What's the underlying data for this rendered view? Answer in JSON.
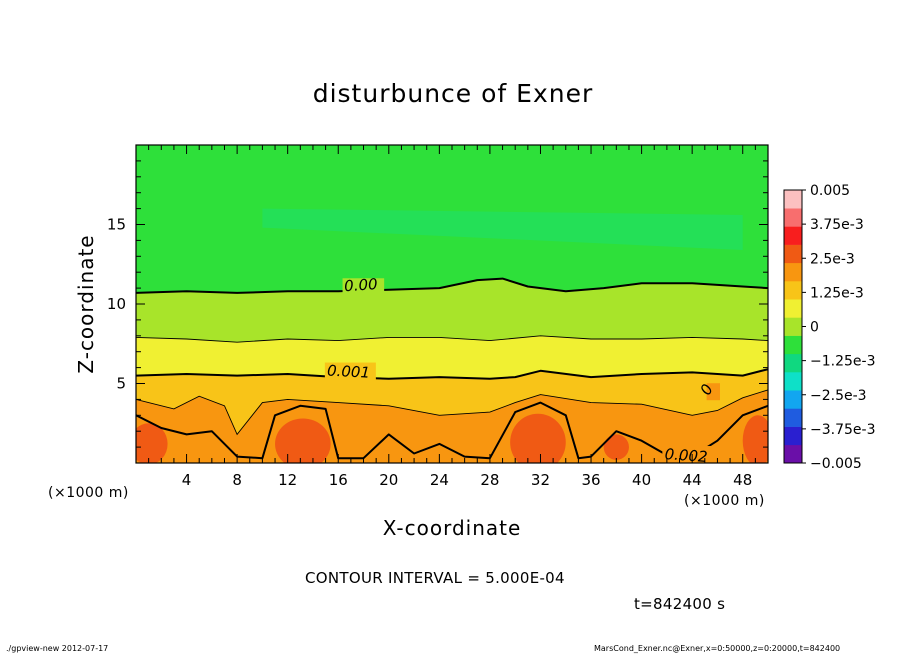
{
  "chart_data": {
    "type": "heatmap",
    "title": "disturbunce of Exner",
    "xlabel": "X-coordinate",
    "ylabel": "Z-coordinate",
    "x_unit": "(×1000 m)",
    "xlim": [
      0,
      50
    ],
    "ylim": [
      0,
      20
    ],
    "xticks": [
      "4",
      "8",
      "12",
      "16",
      "20",
      "24",
      "28",
      "32",
      "36",
      "40",
      "44",
      "48"
    ],
    "yticks": [
      "5",
      "10",
      "15"
    ],
    "colorbar": {
      "tick_labels": [
        "0.005",
        "3.75e-3",
        "2.5e-3",
        "1.25e-3",
        "0",
        "−1.25e-3",
        "−2.5e-3",
        "−3.75e-3",
        "−0.005"
      ],
      "range": [
        -0.005,
        0.005
      ]
    },
    "contour_labels": [
      "0.00",
      "0.001",
      "0.002",
      "0"
    ],
    "contour_interval": "CONTOUR INTERVAL = 5.000E-04",
    "time_label": "t=842400 s",
    "contour_lines_approx": [
      {
        "level": 0.0,
        "x": [
          0,
          4,
          8,
          12,
          16,
          20,
          24,
          27,
          29,
          31,
          34,
          37,
          40,
          44,
          48,
          50
        ],
        "z": [
          10.7,
          10.8,
          10.7,
          10.8,
          10.8,
          10.9,
          11.0,
          11.5,
          11.6,
          11.1,
          10.8,
          11.0,
          11.3,
          11.3,
          11.1,
          11.0
        ]
      },
      {
        "level": 0.0005,
        "x": [
          0,
          4,
          8,
          12,
          16,
          20,
          24,
          28,
          32,
          36,
          40,
          44,
          48,
          50
        ],
        "z": [
          7.9,
          7.8,
          7.6,
          7.8,
          7.7,
          7.9,
          7.9,
          7.7,
          8.0,
          7.8,
          7.8,
          7.9,
          7.8,
          7.7
        ]
      },
      {
        "level": 0.001,
        "x": [
          0,
          4,
          8,
          12,
          16,
          20,
          24,
          28,
          30,
          32,
          36,
          40,
          44,
          48,
          50
        ],
        "z": [
          5.5,
          5.6,
          5.5,
          5.6,
          5.4,
          5.3,
          5.4,
          5.3,
          5.4,
          5.8,
          5.4,
          5.6,
          5.7,
          5.5,
          5.9
        ]
      },
      {
        "level": 0.002,
        "x": [
          0,
          2,
          4,
          6,
          8,
          10,
          11,
          13,
          15,
          16,
          18,
          20,
          22,
          24,
          26,
          28,
          30,
          32,
          34,
          35,
          36,
          38,
          40,
          42,
          44,
          46,
          48,
          50
        ],
        "z": [
          3.0,
          2.2,
          1.8,
          2.0,
          0.4,
          0.3,
          3.0,
          3.6,
          3.4,
          0.3,
          0.3,
          1.8,
          0.6,
          1.2,
          0.4,
          0.3,
          3.2,
          3.8,
          3.0,
          0.3,
          0.4,
          2.0,
          1.4,
          0.5,
          0.4,
          1.4,
          3.0,
          3.6
        ]
      }
    ],
    "field_description_levels": {
      "bands": [
        {
          "z": 20.0,
          "value": -0.0003
        },
        {
          "z": 15.0,
          "value": -0.0006
        },
        {
          "z": 12.0,
          "value": -0.0001
        },
        {
          "z": 10.5,
          "value": 0.0002
        },
        {
          "z": 8.0,
          "value": 0.0005
        },
        {
          "z": 5.5,
          "value": 0.001
        },
        {
          "z": 3.5,
          "value": 0.0016
        },
        {
          "z": 1.5,
          "value": 0.0021
        },
        {
          "z": 0.0,
          "value": 0.0023
        }
      ]
    }
  },
  "footer": {
    "left": "./gpview-new   2012-07-17",
    "right": "MarsCond_Exner.nc@Exner,x=0:50000,z=0:20000,t=842400"
  },
  "colors": {
    "colormap": [
      "#6a0fa8",
      "#2a1fd0",
      "#1f5ce0",
      "#12a6f0",
      "#0ee0c8",
      "#10d880",
      "#2ee03a",
      "#a8e42a",
      "#f0f032",
      "#f8c418",
      "#f89610",
      "#f05a14",
      "#f81e1e",
      "#f86e6e",
      "#fcc0c0"
    ]
  }
}
